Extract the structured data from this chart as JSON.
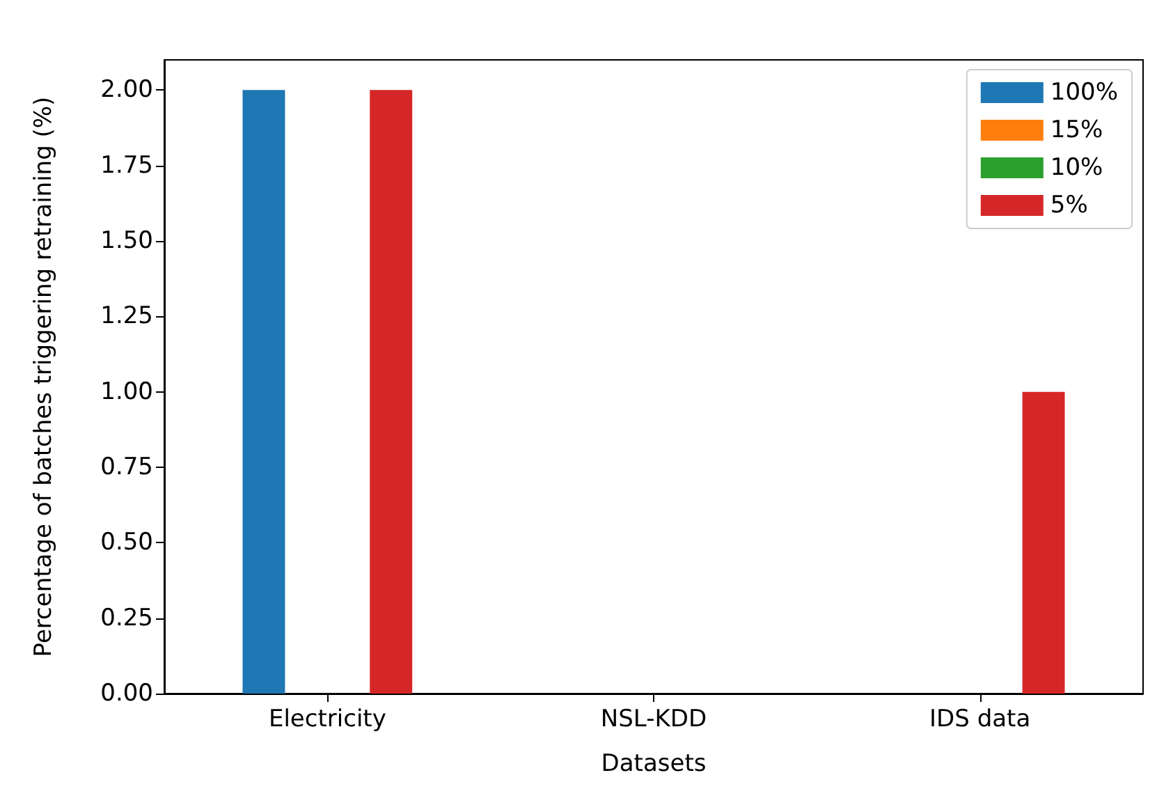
{
  "chart_data": {
    "type": "bar",
    "xlabel": "Datasets",
    "ylabel": "Percentage of batches triggering retraining (%)",
    "categories": [
      "Electricity",
      "NSL-KDD",
      "IDS data"
    ],
    "series": [
      {
        "name": "100%",
        "color": "#1f77b4",
        "values": [
          2,
          0,
          0
        ]
      },
      {
        "name": "15%",
        "color": "#ff7f0e",
        "values": [
          0,
          0,
          0
        ]
      },
      {
        "name": "10%",
        "color": "#2ca02c",
        "values": [
          0,
          0,
          0
        ]
      },
      {
        "name": "5%",
        "color": "#d62728",
        "values": [
          2,
          0,
          1
        ]
      }
    ],
    "ylim": [
      0,
      2.1
    ],
    "yticks": [
      {
        "value": 0,
        "label": "0.00"
      },
      {
        "value": 0.25,
        "label": "0.25"
      },
      {
        "value": 0.5,
        "label": "0.50"
      },
      {
        "value": 0.75,
        "label": "0.75"
      },
      {
        "value": 1,
        "label": "1.00"
      },
      {
        "value": 1.25,
        "label": "1.25"
      },
      {
        "value": 1.5,
        "label": "1.50"
      },
      {
        "value": 1.75,
        "label": "1.75"
      },
      {
        "value": 2,
        "label": "2.00"
      }
    ],
    "grid": false,
    "legend": "top right"
  }
}
